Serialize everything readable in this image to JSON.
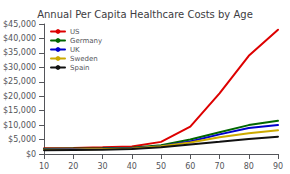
{
  "chart_data": {
    "type": "line",
    "title": "Annual Per Capita Healthcare Costs by Age",
    "x": [
      10,
      20,
      30,
      40,
      50,
      60,
      70,
      80,
      90
    ],
    "series": [
      {
        "name": "US",
        "color": "#dd0000",
        "values": [
          2000,
          2100,
          2300,
          2600,
          4200,
          9500,
          21000,
          34000,
          43000
        ]
      },
      {
        "name": "Germany",
        "color": "#006600",
        "values": [
          1800,
          1900,
          2000,
          2200,
          3000,
          5000,
          7500,
          10000,
          11500
        ]
      },
      {
        "name": "UK",
        "color": "#0000cc",
        "values": [
          1600,
          1700,
          1800,
          2000,
          2700,
          4300,
          6800,
          9000,
          10000
        ]
      },
      {
        "name": "Sweden",
        "color": "#ccaa00",
        "values": [
          1500,
          1600,
          1700,
          1900,
          2700,
          4000,
          5800,
          7200,
          8200
        ]
      },
      {
        "name": "Spain",
        "color": "#111111",
        "values": [
          1300,
          1400,
          1500,
          1700,
          2300,
          3300,
          4200,
          5200,
          6000
        ]
      }
    ],
    "xlim": [
      10,
      90
    ],
    "xticks": [
      10,
      20,
      30,
      40,
      50,
      60,
      70,
      80,
      90
    ],
    "ylim": [
      0,
      45000
    ],
    "yticks": [
      {
        "value": 0,
        "label": "$0"
      },
      {
        "value": 5000,
        "label": "$5,000"
      },
      {
        "value": 10000,
        "label": "$10,000"
      },
      {
        "value": 15000,
        "label": "$15,000"
      },
      {
        "value": 20000,
        "label": "$20,000"
      },
      {
        "value": 25000,
        "label": "$25,000"
      },
      {
        "value": 30000,
        "label": "$30,000"
      },
      {
        "value": 35000,
        "label": "$35,000"
      },
      {
        "value": 40000,
        "label": "$40,000"
      },
      {
        "value": 45000,
        "label": "$45,000"
      }
    ],
    "grid": false,
    "legend": "upper left"
  }
}
